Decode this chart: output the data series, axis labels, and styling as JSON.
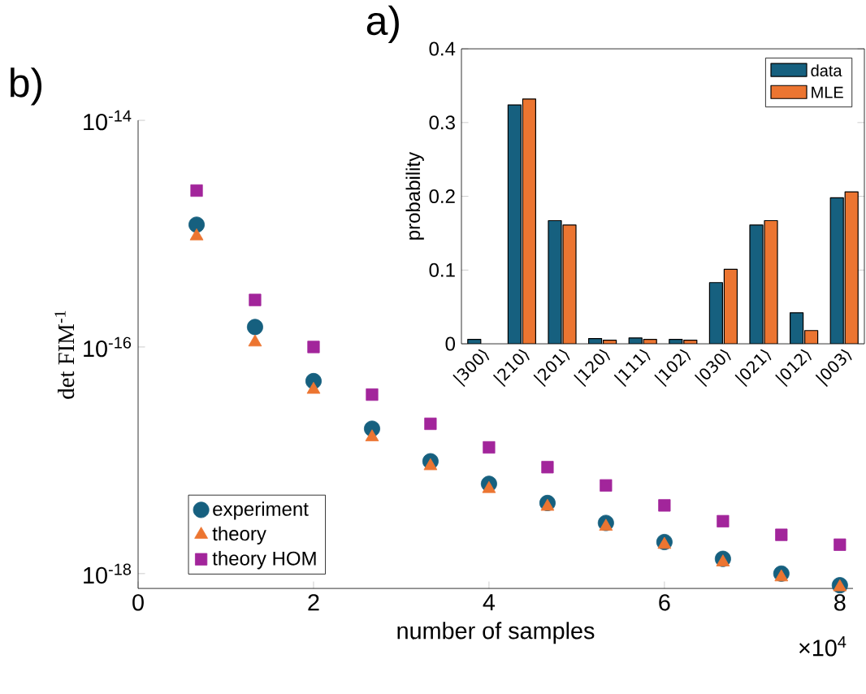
{
  "chart_data": [
    {
      "type": "bar",
      "annotations": [
        "a)"
      ],
      "ylabel": "probability",
      "categories": [
        "|300⟩",
        "|210⟩",
        "|201⟩",
        "|120⟩",
        "|111⟩",
        "|102⟩",
        "|030⟩",
        "|021⟩",
        "|012⟩",
        "|003⟩"
      ],
      "series": [
        {
          "name": "data",
          "color": "#16607f",
          "values": [
            0.006,
            0.324,
            0.167,
            0.007,
            0.008,
            0.006,
            0.083,
            0.161,
            0.042,
            0.198
          ]
        },
        {
          "name": "MLE",
          "color": "#ec7531",
          "values": [
            null,
            0.332,
            0.161,
            0.005,
            0.006,
            0.005,
            0.101,
            0.167,
            0.018,
            0.206
          ]
        }
      ],
      "ylim": [
        0,
        0.4
      ],
      "yticks": [
        0,
        0.1,
        0.2,
        0.3,
        0.4
      ],
      "legend": "top right"
    },
    {
      "type": "scatter",
      "annotations": [
        "b)",
        "×10$^{4}$"
      ],
      "xlabel": "number of samples",
      "ylabel": "det FIM$^{-1}$",
      "x": [
        0.667,
        1.333,
        2,
        2.667,
        3.333,
        4,
        4.667,
        5.333,
        6,
        6.667,
        7.333,
        8
      ],
      "series": [
        {
          "name": "experiment",
          "color": "#16607f",
          "marker": "circle",
          "values": [
            1.2e-15,
            1.5e-16,
            5e-17,
            1.9e-17,
            9.8e-18,
            6.2e-18,
            4.2e-18,
            2.8e-18,
            1.9e-18,
            1.35e-18,
            1e-18,
            7.9e-19
          ]
        },
        {
          "name": "theory",
          "color": "#ec7531",
          "marker": "triangle",
          "values": [
            9.5e-16,
            1.1e-16,
            4.2e-17,
            1.6e-17,
            8.9e-18,
            5.6e-18,
            3.9e-18,
            2.6e-18,
            1.8e-18,
            1.26e-18,
            9.3e-19,
            7.6e-19
          ]
        },
        {
          "name": "theory HOM",
          "color": "#a2259b",
          "marker": "square",
          "values": [
            2.4e-15,
            2.6e-16,
            1e-16,
            3.8e-17,
            2.1e-17,
            1.3e-17,
            8.7e-18,
            6e-18,
            4e-18,
            2.9e-18,
            2.2e-18,
            1.8e-18
          ]
        }
      ],
      "log": "y",
      "xlim": [
        0,
        8.15
      ],
      "ylim": [
        7.4e-19,
        1e-14
      ],
      "xticks": [
        0,
        2,
        4,
        6,
        8
      ],
      "yticks": [
        {
          "value": 1e-14,
          "label": "10$^{-14}$"
        },
        {
          "value": 1e-16,
          "label": "10$^{-16}$"
        },
        {
          "value": 1e-18,
          "label": "10$^{-18}$"
        }
      ],
      "legend": "bottom left"
    }
  ]
}
